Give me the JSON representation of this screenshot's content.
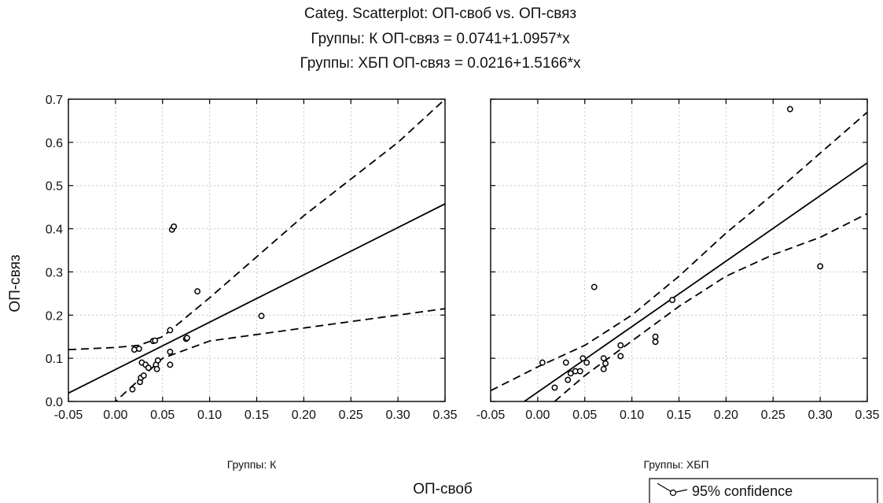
{
  "chart_data": {
    "type": "scatter",
    "title": "Categ. Scatterplot: ОП-своб vs. ОП-связ",
    "subtitles": [
      "Группы: К ОП-связ = 0.0741+1.0957*x",
      "Группы: ХБП ОП-связ = 0.0216+1.5166*x"
    ],
    "xlabel": "ОП-своб",
    "ylabel": "ОП-связ",
    "xlim": [
      -0.05,
      0.35
    ],
    "ylim": [
      0.0,
      0.7
    ],
    "x_ticks": [
      "-0.05",
      "0.00",
      "0.05",
      "0.10",
      "0.15",
      "0.20",
      "0.25",
      "0.30",
      "0.35"
    ],
    "y_ticks": [
      "0.0",
      "0.1",
      "0.2",
      "0.3",
      "0.4",
      "0.5",
      "0.6",
      "0.7"
    ],
    "grid": true,
    "legend": {
      "position": "bottom-right",
      "entries": [
        "95% confidence"
      ]
    },
    "panels": [
      {
        "group_label": "Группы: К",
        "fit": {
          "intercept": 0.0741,
          "slope": 1.0957
        },
        "ci_upper": [
          [
            -0.05,
            0.12
          ],
          [
            0.0,
            0.125
          ],
          [
            0.025,
            0.13
          ],
          [
            0.05,
            0.15
          ],
          [
            0.1,
            0.24
          ],
          [
            0.2,
            0.43
          ],
          [
            0.3,
            0.6
          ],
          [
            0.35,
            0.7
          ]
        ],
        "ci_lower": [
          [
            -0.05,
            -0.07
          ],
          [
            0.0,
            0.0
          ],
          [
            0.05,
            0.1
          ],
          [
            0.1,
            0.14
          ],
          [
            0.2,
            0.17
          ],
          [
            0.3,
            0.2
          ],
          [
            0.35,
            0.215
          ]
        ],
        "points": [
          [
            0.018,
            0.028
          ],
          [
            0.02,
            0.12
          ],
          [
            0.025,
            0.122
          ],
          [
            0.026,
            0.045
          ],
          [
            0.027,
            0.055
          ],
          [
            0.028,
            0.09
          ],
          [
            0.03,
            0.06
          ],
          [
            0.032,
            0.085
          ],
          [
            0.035,
            0.078
          ],
          [
            0.04,
            0.14
          ],
          [
            0.042,
            0.141
          ],
          [
            0.043,
            0.085
          ],
          [
            0.044,
            0.075
          ],
          [
            0.045,
            0.095
          ],
          [
            0.058,
            0.085
          ],
          [
            0.058,
            0.115
          ],
          [
            0.058,
            0.165
          ],
          [
            0.06,
            0.398
          ],
          [
            0.062,
            0.405
          ],
          [
            0.075,
            0.145
          ],
          [
            0.076,
            0.147
          ],
          [
            0.087,
            0.255
          ],
          [
            0.155,
            0.198
          ]
        ]
      },
      {
        "group_label": "Группы: ХБП",
        "fit": {
          "intercept": 0.0216,
          "slope": 1.5166
        },
        "ci_upper": [
          [
            -0.05,
            0.025
          ],
          [
            0.0,
            0.08
          ],
          [
            0.05,
            0.13
          ],
          [
            0.1,
            0.2
          ],
          [
            0.15,
            0.29
          ],
          [
            0.2,
            0.39
          ],
          [
            0.25,
            0.48
          ],
          [
            0.3,
            0.575
          ],
          [
            0.35,
            0.67
          ]
        ],
        "ci_lower": [
          [
            0.018,
            0.0
          ],
          [
            0.05,
            0.06
          ],
          [
            0.1,
            0.14
          ],
          [
            0.15,
            0.22
          ],
          [
            0.2,
            0.29
          ],
          [
            0.25,
            0.34
          ],
          [
            0.3,
            0.38
          ],
          [
            0.35,
            0.435
          ]
        ],
        "points": [
          [
            0.005,
            0.09
          ],
          [
            0.018,
            0.032
          ],
          [
            0.03,
            0.09
          ],
          [
            0.032,
            0.05
          ],
          [
            0.035,
            0.065
          ],
          [
            0.04,
            0.07
          ],
          [
            0.045,
            0.07
          ],
          [
            0.048,
            0.1
          ],
          [
            0.052,
            0.09
          ],
          [
            0.06,
            0.265
          ],
          [
            0.07,
            0.1
          ],
          [
            0.07,
            0.075
          ],
          [
            0.072,
            0.088
          ],
          [
            0.088,
            0.13
          ],
          [
            0.088,
            0.105
          ],
          [
            0.125,
            0.15
          ],
          [
            0.125,
            0.138
          ],
          [
            0.143,
            0.235
          ],
          [
            0.268,
            0.677
          ],
          [
            0.3,
            0.313
          ]
        ]
      }
    ]
  }
}
